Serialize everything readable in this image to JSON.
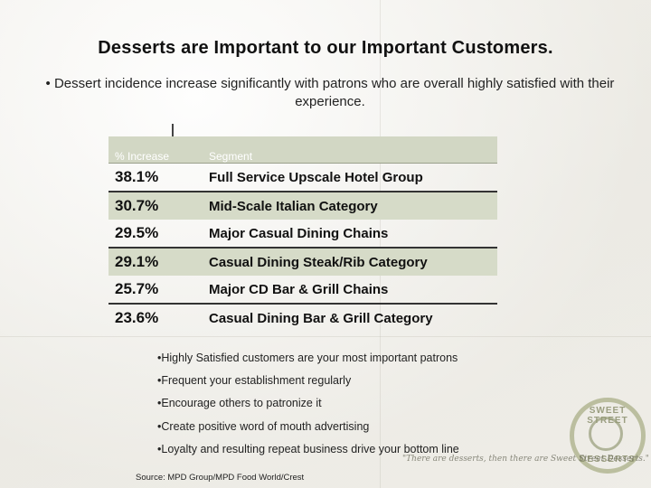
{
  "title": "Desserts are Important to our Important Customers.",
  "subtitle": "• Dessert incidence increase significantly with patrons who are overall highly satisfied with their experience.",
  "table": {
    "headers": {
      "pct": "% Increase",
      "segment": "Segment"
    },
    "rows": [
      {
        "pct": "38.1%",
        "segment": "Full Service Upscale Hotel Group"
      },
      {
        "pct": "30.7%",
        "segment": "Mid-Scale Italian Category"
      },
      {
        "pct": "29.5%",
        "segment": "Major Casual Dining Chains"
      },
      {
        "pct": "29.1%",
        "segment": "Casual Dining Steak/Rib Category"
      },
      {
        "pct": "25.7%",
        "segment": "Major CD Bar & Grill Chains"
      },
      {
        "pct": "23.6%",
        "segment": "Casual Dining Bar & Grill Category"
      }
    ]
  },
  "bullets": [
    "•Highly Satisfied customers are your most important patrons",
    "•Frequent your establishment regularly",
    "•Encourage others to patronize it",
    "•Create positive word of mouth advertising",
    "•Loyalty and resulting repeat business drive your bottom line"
  ],
  "source": "Source: MPD Group/MPD Food World/Crest",
  "logo": {
    "top_text": "SWEET STREET",
    "bottom_text": "DESSERTS",
    "tagline": "\"There are desserts, then there are Sweet Street Desserts.\""
  },
  "colors": {
    "row_shade": "#d6dbc8",
    "header_shade": "#d2d7c4",
    "row_rule": "#333333"
  }
}
